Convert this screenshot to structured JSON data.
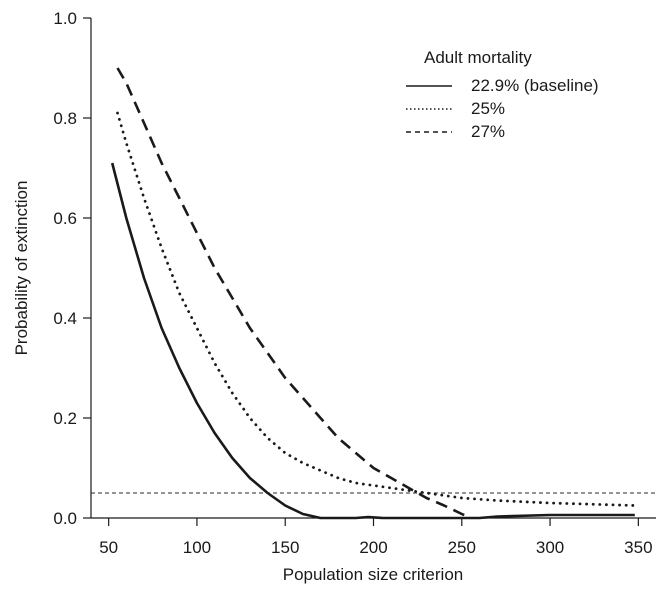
{
  "chart_data": {
    "type": "line",
    "title": "",
    "xlabel": "Population size criterion",
    "ylabel": "Probability of extinction",
    "xlim": [
      40,
      360
    ],
    "ylim": [
      0,
      1.0
    ],
    "x_ticks": [
      50,
      100,
      150,
      200,
      250,
      300,
      350
    ],
    "x_tick_labels": [
      "50",
      "100",
      "150",
      "200",
      "250",
      "300",
      "350"
    ],
    "y_ticks": [
      0.0,
      0.2,
      0.4,
      0.6,
      0.8,
      1.0
    ],
    "y_tick_labels": [
      "0.0",
      "0.2",
      "0.4",
      "0.6",
      "0.8",
      "1.0"
    ],
    "grid": false,
    "legend": {
      "title": "Adult mortality",
      "placement": "top-right"
    },
    "reference_line": {
      "y": 0.05,
      "style": "dotted"
    },
    "series": [
      {
        "name": "22.9% (baseline)",
        "line_style": "solid",
        "points": [
          [
            52,
            0.71
          ],
          [
            60,
            0.6
          ],
          [
            70,
            0.48
          ],
          [
            80,
            0.38
          ],
          [
            90,
            0.3
          ],
          [
            100,
            0.23
          ],
          [
            110,
            0.17
          ],
          [
            120,
            0.12
          ],
          [
            130,
            0.08
          ],
          [
            140,
            0.05
          ],
          [
            150,
            0.025
          ],
          [
            160,
            0.008
          ],
          [
            170,
            0.0
          ],
          [
            190,
            0.0
          ],
          [
            197,
            0.002
          ],
          [
            205,
            0.0
          ],
          [
            250,
            0.0
          ],
          [
            260,
            0.0
          ],
          [
            270,
            0.003
          ],
          [
            300,
            0.006
          ],
          [
            348,
            0.006
          ]
        ]
      },
      {
        "name": "25%",
        "line_style": "dotted",
        "points": [
          [
            55,
            0.81
          ],
          [
            60,
            0.75
          ],
          [
            70,
            0.64
          ],
          [
            80,
            0.54
          ],
          [
            90,
            0.45
          ],
          [
            100,
            0.38
          ],
          [
            110,
            0.31
          ],
          [
            120,
            0.25
          ],
          [
            130,
            0.2
          ],
          [
            140,
            0.16
          ],
          [
            150,
            0.13
          ],
          [
            160,
            0.11
          ],
          [
            170,
            0.095
          ],
          [
            180,
            0.08
          ],
          [
            190,
            0.07
          ],
          [
            200,
            0.065
          ],
          [
            210,
            0.06
          ],
          [
            220,
            0.055
          ],
          [
            230,
            0.05
          ],
          [
            240,
            0.045
          ],
          [
            250,
            0.04
          ],
          [
            270,
            0.035
          ],
          [
            300,
            0.03
          ],
          [
            348,
            0.025
          ]
        ]
      },
      {
        "name": "27%",
        "line_style": "dashed",
        "points": [
          [
            55,
            0.9
          ],
          [
            60,
            0.87
          ],
          [
            70,
            0.79
          ],
          [
            80,
            0.71
          ],
          [
            90,
            0.64
          ],
          [
            100,
            0.57
          ],
          [
            110,
            0.5
          ],
          [
            120,
            0.44
          ],
          [
            130,
            0.38
          ],
          [
            140,
            0.33
          ],
          [
            150,
            0.28
          ],
          [
            160,
            0.24
          ],
          [
            170,
            0.2
          ],
          [
            180,
            0.16
          ],
          [
            190,
            0.13
          ],
          [
            200,
            0.1
          ],
          [
            210,
            0.08
          ],
          [
            220,
            0.06
          ],
          [
            230,
            0.04
          ],
          [
            240,
            0.025
          ],
          [
            250,
            0.008
          ],
          [
            255,
            0.0
          ]
        ]
      }
    ]
  }
}
